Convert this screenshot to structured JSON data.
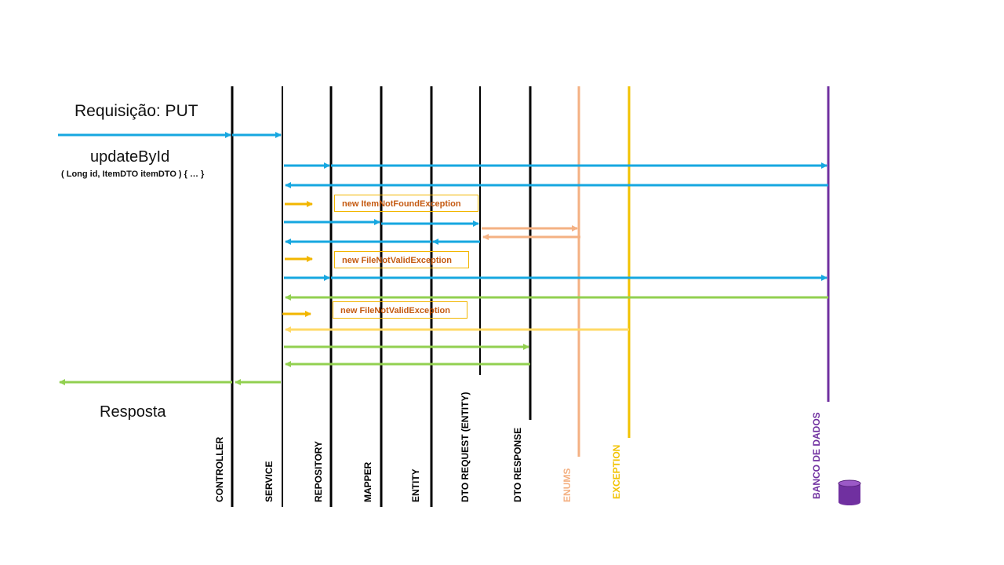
{
  "header": {
    "request_title": "Requisição: PUT",
    "method_name": "updateById",
    "method_signature": "( Long id,  ItemDTO itemDTO ) { … }",
    "response_label": "Resposta"
  },
  "lanes": [
    {
      "label": "CONTROLLER",
      "color": "#000000"
    },
    {
      "label": "SERVICE",
      "color": "#000000"
    },
    {
      "label": "REPOSITORY",
      "color": "#000000"
    },
    {
      "label": "MAPPER",
      "color": "#000000"
    },
    {
      "label": "ENTITY",
      "color": "#000000"
    },
    {
      "label": "DTO REQUEST (ENTITY)",
      "color": "#000000"
    },
    {
      "label": "DTO RESPONSE",
      "color": "#000000"
    },
    {
      "label": "ENUMS",
      "color": "#f4b183"
    },
    {
      "label": "EXCEPTION",
      "color": "#f2c200"
    },
    {
      "label": "BANCO DE DADOS",
      "color": "#7030a0"
    }
  ],
  "exceptions": [
    {
      "label": "new ItemNotFoundException"
    },
    {
      "label": "new FileNotValidException"
    },
    {
      "label": "new FileNotValidException"
    }
  ],
  "colors": {
    "call": "#16a7e0",
    "success_return": "#92d050",
    "exception": "#f2b600",
    "enum": "#f4b183",
    "database": "#7030a0"
  },
  "icons": {
    "database": "database-cylinder-icon"
  }
}
